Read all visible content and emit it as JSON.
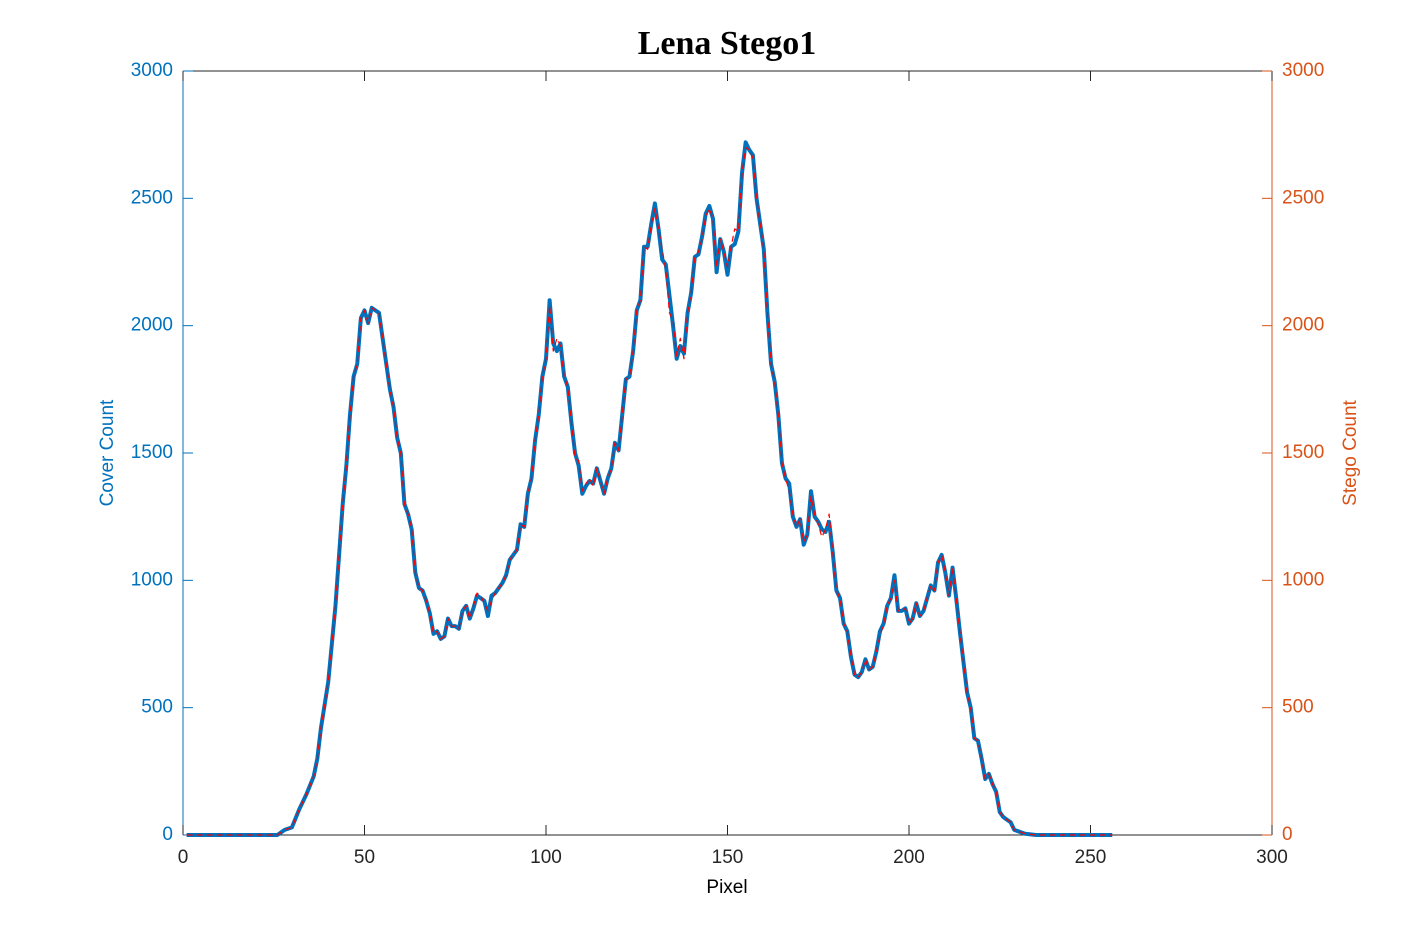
{
  "chart_data": {
    "type": "line",
    "title": "Lena Stego1",
    "xlabel": "Pixel",
    "ylabel": "Cover Count",
    "y2label": "Stego Count",
    "ycolor": "#0072bd",
    "y2color": "#d95319",
    "xlim": [
      0,
      300
    ],
    "xticks": [
      0,
      50,
      100,
      150,
      200,
      250,
      300
    ],
    "ylim": [
      0,
      3000
    ],
    "yticks": [
      0,
      500,
      1000,
      1500,
      2000,
      2500,
      3000
    ],
    "y2lim": [
      0,
      3000
    ],
    "y2ticks": [
      0,
      500,
      1000,
      1500,
      2000,
      2500,
      3000
    ],
    "x": [
      1,
      26,
      28,
      30,
      32,
      34,
      36,
      37,
      38,
      40,
      42,
      44,
      45,
      46,
      47,
      48,
      49,
      50,
      51,
      52,
      53,
      54,
      55,
      56,
      57,
      58,
      59,
      60,
      61,
      62,
      63,
      64,
      65,
      66,
      67,
      68,
      69,
      70,
      71,
      72,
      73,
      74,
      75,
      76,
      77,
      78,
      79,
      80,
      81,
      82,
      83,
      84,
      85,
      86,
      88,
      89,
      90,
      91,
      92,
      93,
      94,
      95,
      96,
      97,
      98,
      99,
      100,
      101,
      102,
      103,
      104,
      105,
      106,
      107,
      108,
      109,
      110,
      111,
      112,
      113,
      114,
      115,
      116,
      117,
      118,
      119,
      120,
      121,
      122,
      123,
      124,
      125,
      126,
      127,
      128,
      129,
      130,
      131,
      132,
      133,
      134,
      135,
      136,
      137,
      138,
      139,
      140,
      141,
      142,
      143,
      144,
      145,
      146,
      147,
      148,
      149,
      150,
      151,
      152,
      153,
      154,
      155,
      156,
      157,
      158,
      159,
      160,
      161,
      162,
      163,
      164,
      165,
      166,
      167,
      168,
      169,
      170,
      171,
      172,
      173,
      174,
      175,
      176,
      177,
      178,
      179,
      180,
      181,
      182,
      183,
      184,
      185,
      186,
      187,
      188,
      189,
      190,
      191,
      192,
      193,
      194,
      195,
      196,
      197,
      198,
      199,
      200,
      201,
      202,
      203,
      204,
      205,
      206,
      207,
      208,
      209,
      210,
      211,
      212,
      213,
      214,
      215,
      216,
      217,
      218,
      219,
      220,
      221,
      222,
      223,
      224,
      225,
      226,
      227,
      228,
      229,
      230,
      232,
      235,
      256
    ],
    "series": [
      {
        "name": "Cover",
        "color": "#0072bd",
        "width": 4,
        "dash": false,
        "values": [
          0,
          0,
          20,
          30,
          100,
          160,
          230,
          300,
          420,
          600,
          900,
          1300,
          1450,
          1650,
          1800,
          1850,
          2030,
          2060,
          2010,
          2070,
          2060,
          2050,
          1950,
          1850,
          1750,
          1680,
          1560,
          1500,
          1300,
          1260,
          1200,
          1030,
          970,
          960,
          920,
          870,
          790,
          800,
          770,
          780,
          850,
          820,
          820,
          810,
          880,
          900,
          850,
          890,
          940,
          930,
          920,
          860,
          940,
          950,
          990,
          1020,
          1080,
          1100,
          1120,
          1220,
          1210,
          1340,
          1400,
          1550,
          1650,
          1800,
          1870,
          2100,
          1930,
          1900,
          1930,
          1800,
          1760,
          1620,
          1500,
          1450,
          1340,
          1370,
          1390,
          1380,
          1440,
          1390,
          1340,
          1400,
          1440,
          1540,
          1510,
          1650,
          1790,
          1800,
          1900,
          2060,
          2100,
          2310,
          2310,
          2400,
          2480,
          2380,
          2260,
          2240,
          2120,
          2000,
          1870,
          1920,
          1890,
          2050,
          2130,
          2270,
          2280,
          2350,
          2440,
          2470,
          2420,
          2210,
          2340,
          2290,
          2200,
          2310,
          2320,
          2370,
          2600,
          2720,
          2690,
          2670,
          2500,
          2400,
          2300,
          2050,
          1850,
          1780,
          1650,
          1460,
          1400,
          1380,
          1250,
          1210,
          1240,
          1140,
          1180,
          1350,
          1250,
          1230,
          1200,
          1190,
          1230,
          1110,
          960,
          930,
          830,
          800,
          700,
          630,
          620,
          640,
          690,
          650,
          660,
          720,
          800,
          830,
          900,
          930,
          1020,
          880,
          880,
          890,
          830,
          850,
          910,
          860,
          880,
          930,
          980,
          960,
          1070,
          1100,
          1030,
          940,
          1050,
          930,
          800,
          680,
          560,
          500,
          380,
          370,
          300,
          220,
          240,
          200,
          170,
          90,
          70,
          60,
          50,
          20,
          15,
          5,
          0,
          0
        ]
      },
      {
        "name": "Stego",
        "color": "#ff0000",
        "width": 1.2,
        "dash": true,
        "axis": "y2",
        "values": [
          0,
          0,
          20,
          30,
          100,
          160,
          230,
          300,
          420,
          600,
          900,
          1300,
          1450,
          1650,
          1800,
          1850,
          2030,
          2060,
          2010,
          2070,
          2060,
          2050,
          1950,
          1850,
          1750,
          1680,
          1560,
          1500,
          1300,
          1260,
          1200,
          1030,
          970,
          960,
          920,
          870,
          790,
          800,
          770,
          780,
          850,
          820,
          820,
          810,
          880,
          900,
          850,
          900,
          950,
          940,
          910,
          880,
          920,
          950,
          990,
          1020,
          1080,
          1100,
          1120,
          1220,
          1210,
          1340,
          1400,
          1550,
          1650,
          1800,
          1870,
          2080,
          1900,
          1950,
          1920,
          1800,
          1760,
          1620,
          1480,
          1470,
          1350,
          1380,
          1400,
          1370,
          1440,
          1390,
          1340,
          1400,
          1440,
          1540,
          1510,
          1650,
          1790,
          1800,
          1900,
          2060,
          2100,
          2310,
          2300,
          2400,
          2460,
          2380,
          2300,
          2220,
          2050,
          2020,
          1880,
          1950,
          1870,
          2050,
          2130,
          2270,
          2290,
          2340,
          2430,
          2460,
          2420,
          2230,
          2340,
          2290,
          2230,
          2310,
          2380,
          2370,
          2600,
          2700,
          2690,
          2660,
          2500,
          2400,
          2300,
          2050,
          1850,
          1780,
          1650,
          1460,
          1400,
          1350,
          1260,
          1210,
          1240,
          1150,
          1180,
          1330,
          1260,
          1220,
          1170,
          1200,
          1260,
          1110,
          960,
          930,
          830,
          800,
          700,
          630,
          620,
          640,
          690,
          650,
          660,
          720,
          780,
          830,
          900,
          930,
          1000,
          880,
          880,
          890,
          830,
          850,
          910,
          860,
          880,
          930,
          980,
          960,
          1070,
          1100,
          1030,
          940,
          1050,
          930,
          800,
          680,
          560,
          500,
          380,
          370,
          300,
          220,
          240,
          200,
          170,
          90,
          70,
          60,
          50,
          20,
          15,
          5,
          0,
          0
        ]
      }
    ]
  }
}
